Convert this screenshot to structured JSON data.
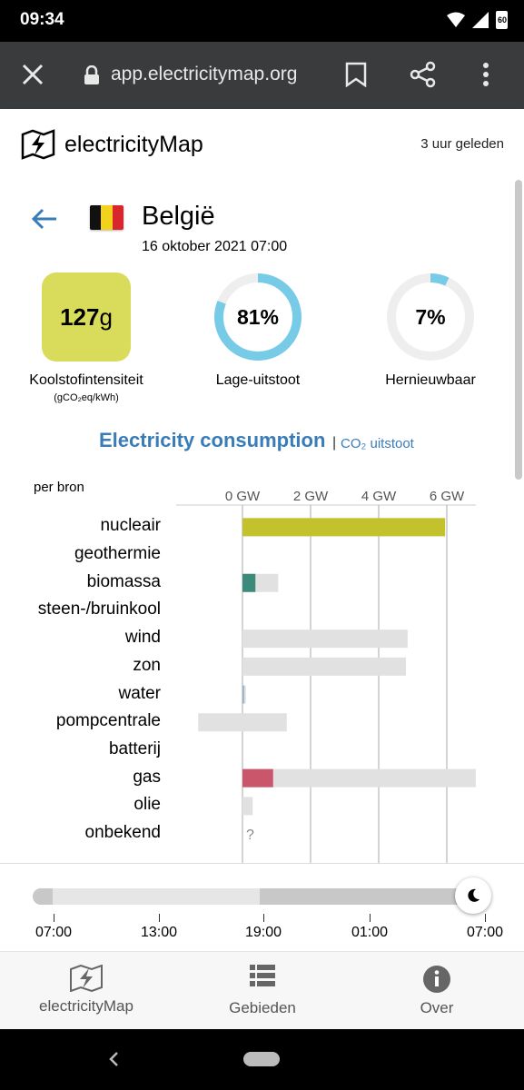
{
  "status_bar": {
    "time": "09:34",
    "battery": "60"
  },
  "browser": {
    "url": "app.electricitymap.org"
  },
  "app_header": {
    "brand": "electricityMap",
    "updated": "3 uur geleden"
  },
  "zone": {
    "country": "België",
    "datetime": "16 oktober 2021 07:00",
    "carbon_intensity_value": "127",
    "carbon_intensity_unit": "g",
    "carbon_intensity_label": "Koolstofintensiteit",
    "carbon_intensity_sub": "(gCO₂eq/kWh)",
    "low_carbon_value": "81%",
    "low_carbon_fraction": 0.81,
    "low_carbon_label": "Lage-uitstoot",
    "renewable_value": "7%",
    "renewable_fraction": 0.07,
    "renewable_label": "Hernieuwbaar",
    "colors": {
      "carbon_box": "#d8dc5a",
      "ring_fill": "#77cbe7",
      "ring_track": "#eeeeee"
    }
  },
  "tabs": {
    "active": "Electricity consumption",
    "separator": "|",
    "alt": "CO₂ uitstoot"
  },
  "chart_data": {
    "type": "bar",
    "title": "per bron",
    "x_ticks": [
      "0 GW",
      "2 GW",
      "4 GW",
      "6 GW"
    ],
    "xlim": [
      -1.3,
      6.9
    ],
    "categories": [
      "nucleair",
      "geothermie",
      "biomassa",
      "steen-/bruinkool",
      "wind",
      "zon",
      "water",
      "pompcentrale",
      "batterij",
      "gas",
      "olie",
      "onbekend"
    ],
    "production_gw": [
      5.95,
      null,
      0.38,
      null,
      0.0,
      0.0,
      0.05,
      0.0,
      null,
      0.9,
      0.0,
      null
    ],
    "capacity_gw": [
      5.95,
      null,
      1.05,
      null,
      4.85,
      4.8,
      0.1,
      1.3,
      null,
      6.85,
      0.3,
      null
    ],
    "capacity_min_gw": [
      0,
      null,
      0,
      null,
      0,
      0,
      0,
      -1.3,
      null,
      0,
      0,
      null
    ],
    "unknown_marker": "?",
    "colors": {
      "nucleair": "#c3c22c",
      "biomassa": "#3c8a7a",
      "gas": "#c9566a",
      "water": "#9bb3c8",
      "capacity": "#e1e1e1",
      "grid": "#bdbdbd"
    }
  },
  "timeline": {
    "labels": [
      "07:00",
      "13:00",
      "19:00",
      "01:00",
      "07:00"
    ]
  },
  "bottom_nav": {
    "items": [
      {
        "label": "electricityMap",
        "icon": "map-icon"
      },
      {
        "label": "Gebieden",
        "icon": "list-icon"
      },
      {
        "label": "Over",
        "icon": "info-icon"
      }
    ]
  }
}
